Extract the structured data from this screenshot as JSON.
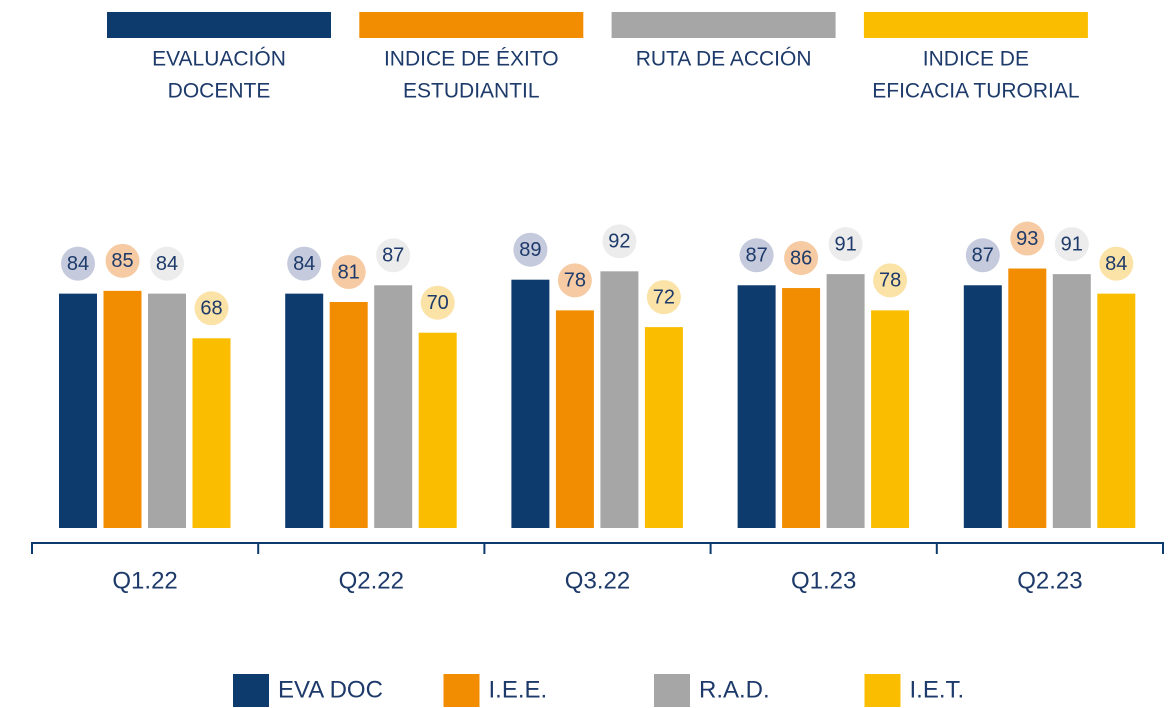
{
  "chart_data": {
    "type": "bar",
    "categories": [
      "Q1.22",
      "Q2.22",
      "Q3.22",
      "Q1.23",
      "Q2.23"
    ],
    "series": [
      {
        "name": "EVA DOC",
        "description": [
          "EVALUACIÓN",
          "DOCENTE"
        ],
        "color": "#0d3b6e",
        "label_color": "#c5cadc",
        "values": [
          84,
          84,
          89,
          87,
          87
        ]
      },
      {
        "name": "I.E.E.",
        "description": [
          "INDICE DE ÉXITO",
          "ESTUDIANTIL"
        ],
        "color": "#f28c00",
        "label_color": "#f6cba3",
        "values": [
          85,
          81,
          78,
          86,
          93
        ]
      },
      {
        "name": "R.A.D.",
        "description": [
          "RUTA DE ACCIÓN"
        ],
        "color": "#a6a6a6",
        "label_color": "#ececec",
        "values": [
          84,
          87,
          92,
          91,
          91
        ]
      },
      {
        "name": "I.E.T.",
        "description": [
          "INDICE DE",
          "EFICACIA TURORIAL"
        ],
        "color": "#fbbd00",
        "label_color": "#fbe2a6",
        "values": [
          68,
          70,
          72,
          78,
          84
        ]
      }
    ]
  }
}
